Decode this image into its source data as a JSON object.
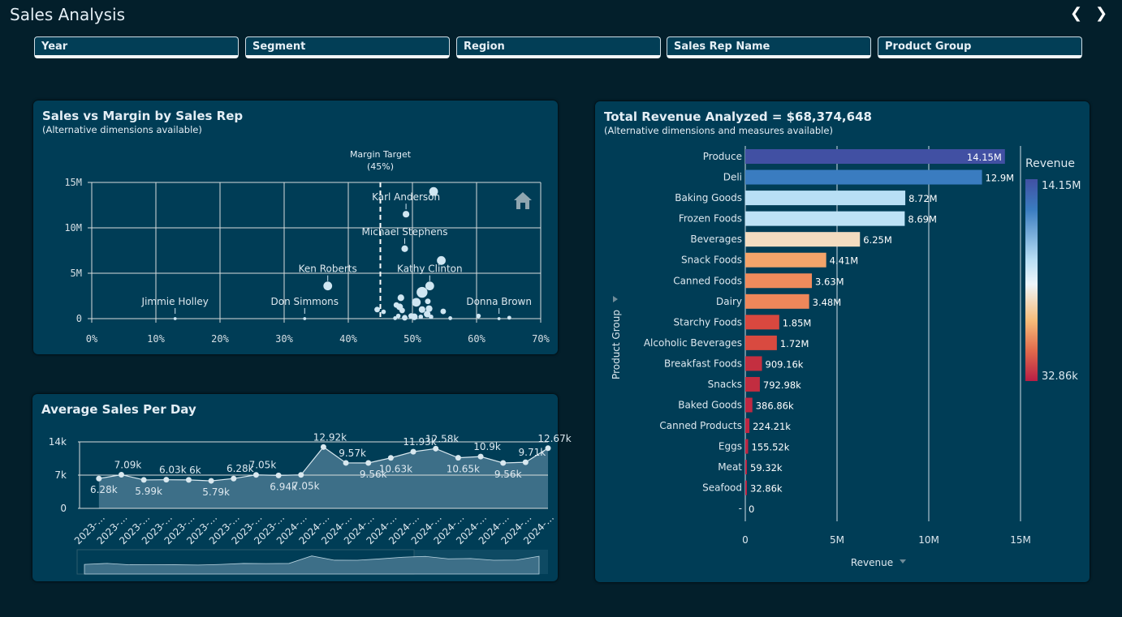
{
  "header": {
    "title": "Sales Analysis",
    "prev_icon": "chevron-left-icon",
    "next_icon": "chevron-right-icon"
  },
  "filters": [
    "Year",
    "Segment",
    "Region",
    "Sales Rep Name",
    "Product Group"
  ],
  "scatter": {
    "title": "Sales vs Margin by Sales Rep",
    "subtitle": "(Alternative dimensions available)",
    "home_icon": "home-icon",
    "chart_data": {
      "type": "scatter",
      "xlim": [
        0,
        70
      ],
      "ylim": [
        0,
        15000000
      ],
      "x_ticks": [
        "0%",
        "10%",
        "20%",
        "30%",
        "40%",
        "50%",
        "60%",
        "70%"
      ],
      "y_ticks": [
        "0",
        "5M",
        "10M",
        "15M"
      ],
      "reference_line": {
        "value": 45,
        "label": "Margin Target",
        "sublabel": "(45%)"
      },
      "points": [
        {
          "x": 53.3,
          "y": 14.0,
          "s": 3
        },
        {
          "x": 49,
          "y": 11.5,
          "s": 2,
          "label": "Karl Anderson"
        },
        {
          "x": 48.8,
          "y": 7.7,
          "s": 2,
          "label": "Michael Stephens"
        },
        {
          "x": 54.5,
          "y": 6.4,
          "s": 3
        },
        {
          "x": 36.8,
          "y": 3.6,
          "s": 3,
          "label": "Ken Roberts"
        },
        {
          "x": 52.7,
          "y": 3.6,
          "s": 3,
          "label": "Kathy Clinton"
        },
        {
          "x": 51.5,
          "y": 2.9,
          "s": 4
        },
        {
          "x": 50.6,
          "y": 1.8,
          "s": 3
        },
        {
          "x": 48.2,
          "y": 2.3,
          "s": 2
        },
        {
          "x": 52.4,
          "y": 1.9,
          "s": 1.5
        },
        {
          "x": 44.5,
          "y": 1.0,
          "s": 1.5
        },
        {
          "x": 45.5,
          "y": 0.75,
          "s": 1
        },
        {
          "x": 47.5,
          "y": 1.5,
          "s": 1.5
        },
        {
          "x": 48,
          "y": 1.3,
          "s": 2
        },
        {
          "x": 48.4,
          "y": 0.9,
          "s": 1.5
        },
        {
          "x": 51.5,
          "y": 1.0,
          "s": 2
        },
        {
          "x": 52.6,
          "y": 1.1,
          "s": 2
        },
        {
          "x": 54.8,
          "y": 0.8,
          "s": 1.5
        },
        {
          "x": 52.3,
          "y": 0.5,
          "s": 2
        },
        {
          "x": 49.8,
          "y": 0.3,
          "s": 1.5
        },
        {
          "x": 50.3,
          "y": 0.2,
          "s": 2
        },
        {
          "x": 48.8,
          "y": 0.1,
          "s": 1.5
        },
        {
          "x": 47.8,
          "y": 0.3,
          "s": 1
        },
        {
          "x": 51.3,
          "y": 0.2,
          "s": 1
        },
        {
          "x": 52.9,
          "y": 0.2,
          "s": 1
        },
        {
          "x": 55.9,
          "y": 0.05,
          "s": 0.7
        },
        {
          "x": 60.3,
          "y": 0.3,
          "s": 1
        },
        {
          "x": 65.1,
          "y": 0.1,
          "s": 0.7
        },
        {
          "x": 47.3,
          "y": 0.05,
          "s": 0.7
        },
        {
          "x": 13,
          "y": 0,
          "s": 0.3,
          "label": "Jimmie Holley"
        },
        {
          "x": 33.2,
          "y": 0,
          "s": 0.3,
          "label": "Don Simmons"
        },
        {
          "x": 63.5,
          "y": 0,
          "s": 0.3,
          "label": "Donna Brown"
        }
      ]
    }
  },
  "line": {
    "title": "Average Sales Per Day",
    "chart_data": {
      "type": "area",
      "ylim": [
        0,
        14000
      ],
      "y_ticks": [
        "0",
        "7k",
        "14k"
      ],
      "x": [
        "2023-…",
        "2023-…",
        "2023-…",
        "2023-…",
        "2023-…",
        "2023-…",
        "2023-…",
        "2023-…",
        "2023-…",
        "2024-…",
        "2024-…",
        "2024-…",
        "2024-…",
        "2024-…",
        "2024-…",
        "2024-…",
        "2024-…",
        "2024-…",
        "2024-…",
        "2024-…",
        "2024-…"
      ],
      "values": [
        6280,
        7090,
        5990,
        6030,
        6000,
        5790,
        6280,
        7050,
        6940,
        7050,
        12920,
        9570,
        9560,
        10630,
        11930,
        12580,
        10650,
        10900,
        9560,
        9710,
        12670
      ],
      "labels": [
        "6.28k",
        "7.09k",
        "5.99k",
        "6.03k",
        "6k",
        "5.79k",
        "6.28k",
        "7.05k",
        "6.94k",
        "7.05k",
        "12.92k",
        "9.57k",
        "9.56k",
        "10.63k",
        "11.93k",
        "12.58k",
        "10.65k",
        "10.9k",
        "9.56k",
        "9.71k",
        "12.67k"
      ]
    }
  },
  "bars": {
    "title": "Total Revenue Analyzed = $68,374,648",
    "subtitle": "(Alternative dimensions and measures available)",
    "chart_data": {
      "type": "bar",
      "orientation": "horizontal",
      "xlabel": "Revenue",
      "ylabel": "Product Group",
      "xlim": [
        0,
        15000000
      ],
      "x_ticks": [
        "0",
        "5M",
        "10M",
        "15M"
      ],
      "legend": {
        "title": "Revenue",
        "max": "14.15M",
        "min": "32.86k"
      },
      "categories": [
        "Produce",
        "Deli",
        "Baking Goods",
        "Frozen Foods",
        "Beverages",
        "Snack Foods",
        "Canned Foods",
        "Dairy",
        "Starchy Foods",
        "Alcoholic Beverages",
        "Breakfast Foods",
        "Snacks",
        "Baked Goods",
        "Canned Products",
        "Eggs",
        "Meat",
        "Seafood",
        "-"
      ],
      "values": [
        14150000,
        12900000,
        8720000,
        8690000,
        6250000,
        4410000,
        3630000,
        3480000,
        1850000,
        1720000,
        909160,
        792980,
        386860,
        224210,
        155520,
        59320,
        32860,
        0
      ],
      "labels": [
        "14.15M",
        "12.9M",
        "8.72M",
        "8.69M",
        "6.25M",
        "4.41M",
        "3.63M",
        "3.48M",
        "1.85M",
        "1.72M",
        "909.16k",
        "792.98k",
        "386.86k",
        "224.21k",
        "155.52k",
        "59.32k",
        "32.86k",
        "0"
      ],
      "colors": [
        "#4150a3",
        "#3a7cc0",
        "#b8dff5",
        "#bde2f6",
        "#f3dcc0",
        "#f4a46a",
        "#ef8b5c",
        "#ee875a",
        "#d9483f",
        "#d94a40",
        "#c42f40",
        "#c22d40",
        "#bf2842",
        "#be2642",
        "#bd2643",
        "#bc2443",
        "#bb2343",
        "#bb2343"
      ]
    }
  }
}
